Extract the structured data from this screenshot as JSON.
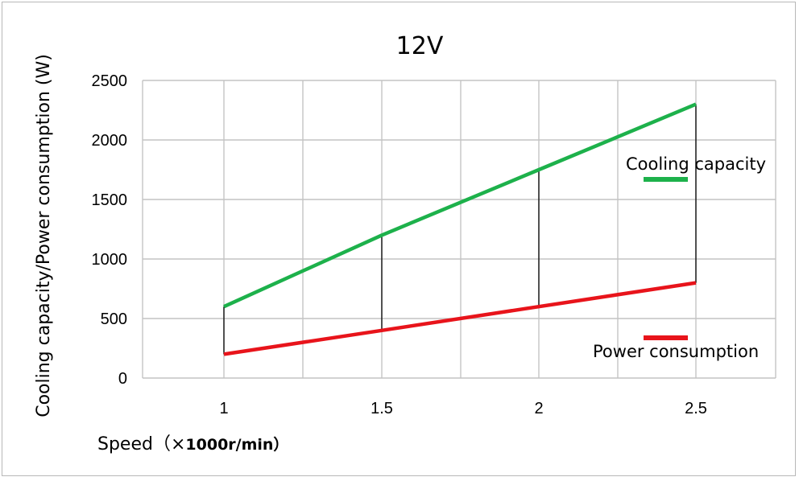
{
  "chart_data": {
    "type": "line",
    "title": "12V",
    "xlabel": "Speed（×1000r/min）",
    "xlabel_parts": [
      "Speed（",
      "×",
      "1000r/min）"
    ],
    "ylabel": "Cooling capacity/Power consumption (W)",
    "x": [
      1,
      1.5,
      2,
      2.5
    ],
    "x_tick_labels": [
      "1",
      "1.5",
      "2",
      "2.5"
    ],
    "y_ticks": [
      0,
      500,
      1000,
      1500,
      2000,
      2500
    ],
    "ylim": [
      0,
      2500
    ],
    "grid": true,
    "legend_placement": "right",
    "series": [
      {
        "name": "Cooling capacity",
        "color": "#1db14b",
        "values": [
          600,
          1200,
          1750,
          2300
        ]
      },
      {
        "name": "Power consumption",
        "color": "#e8141b",
        "values": [
          200,
          400,
          600,
          800
        ]
      }
    ]
  }
}
